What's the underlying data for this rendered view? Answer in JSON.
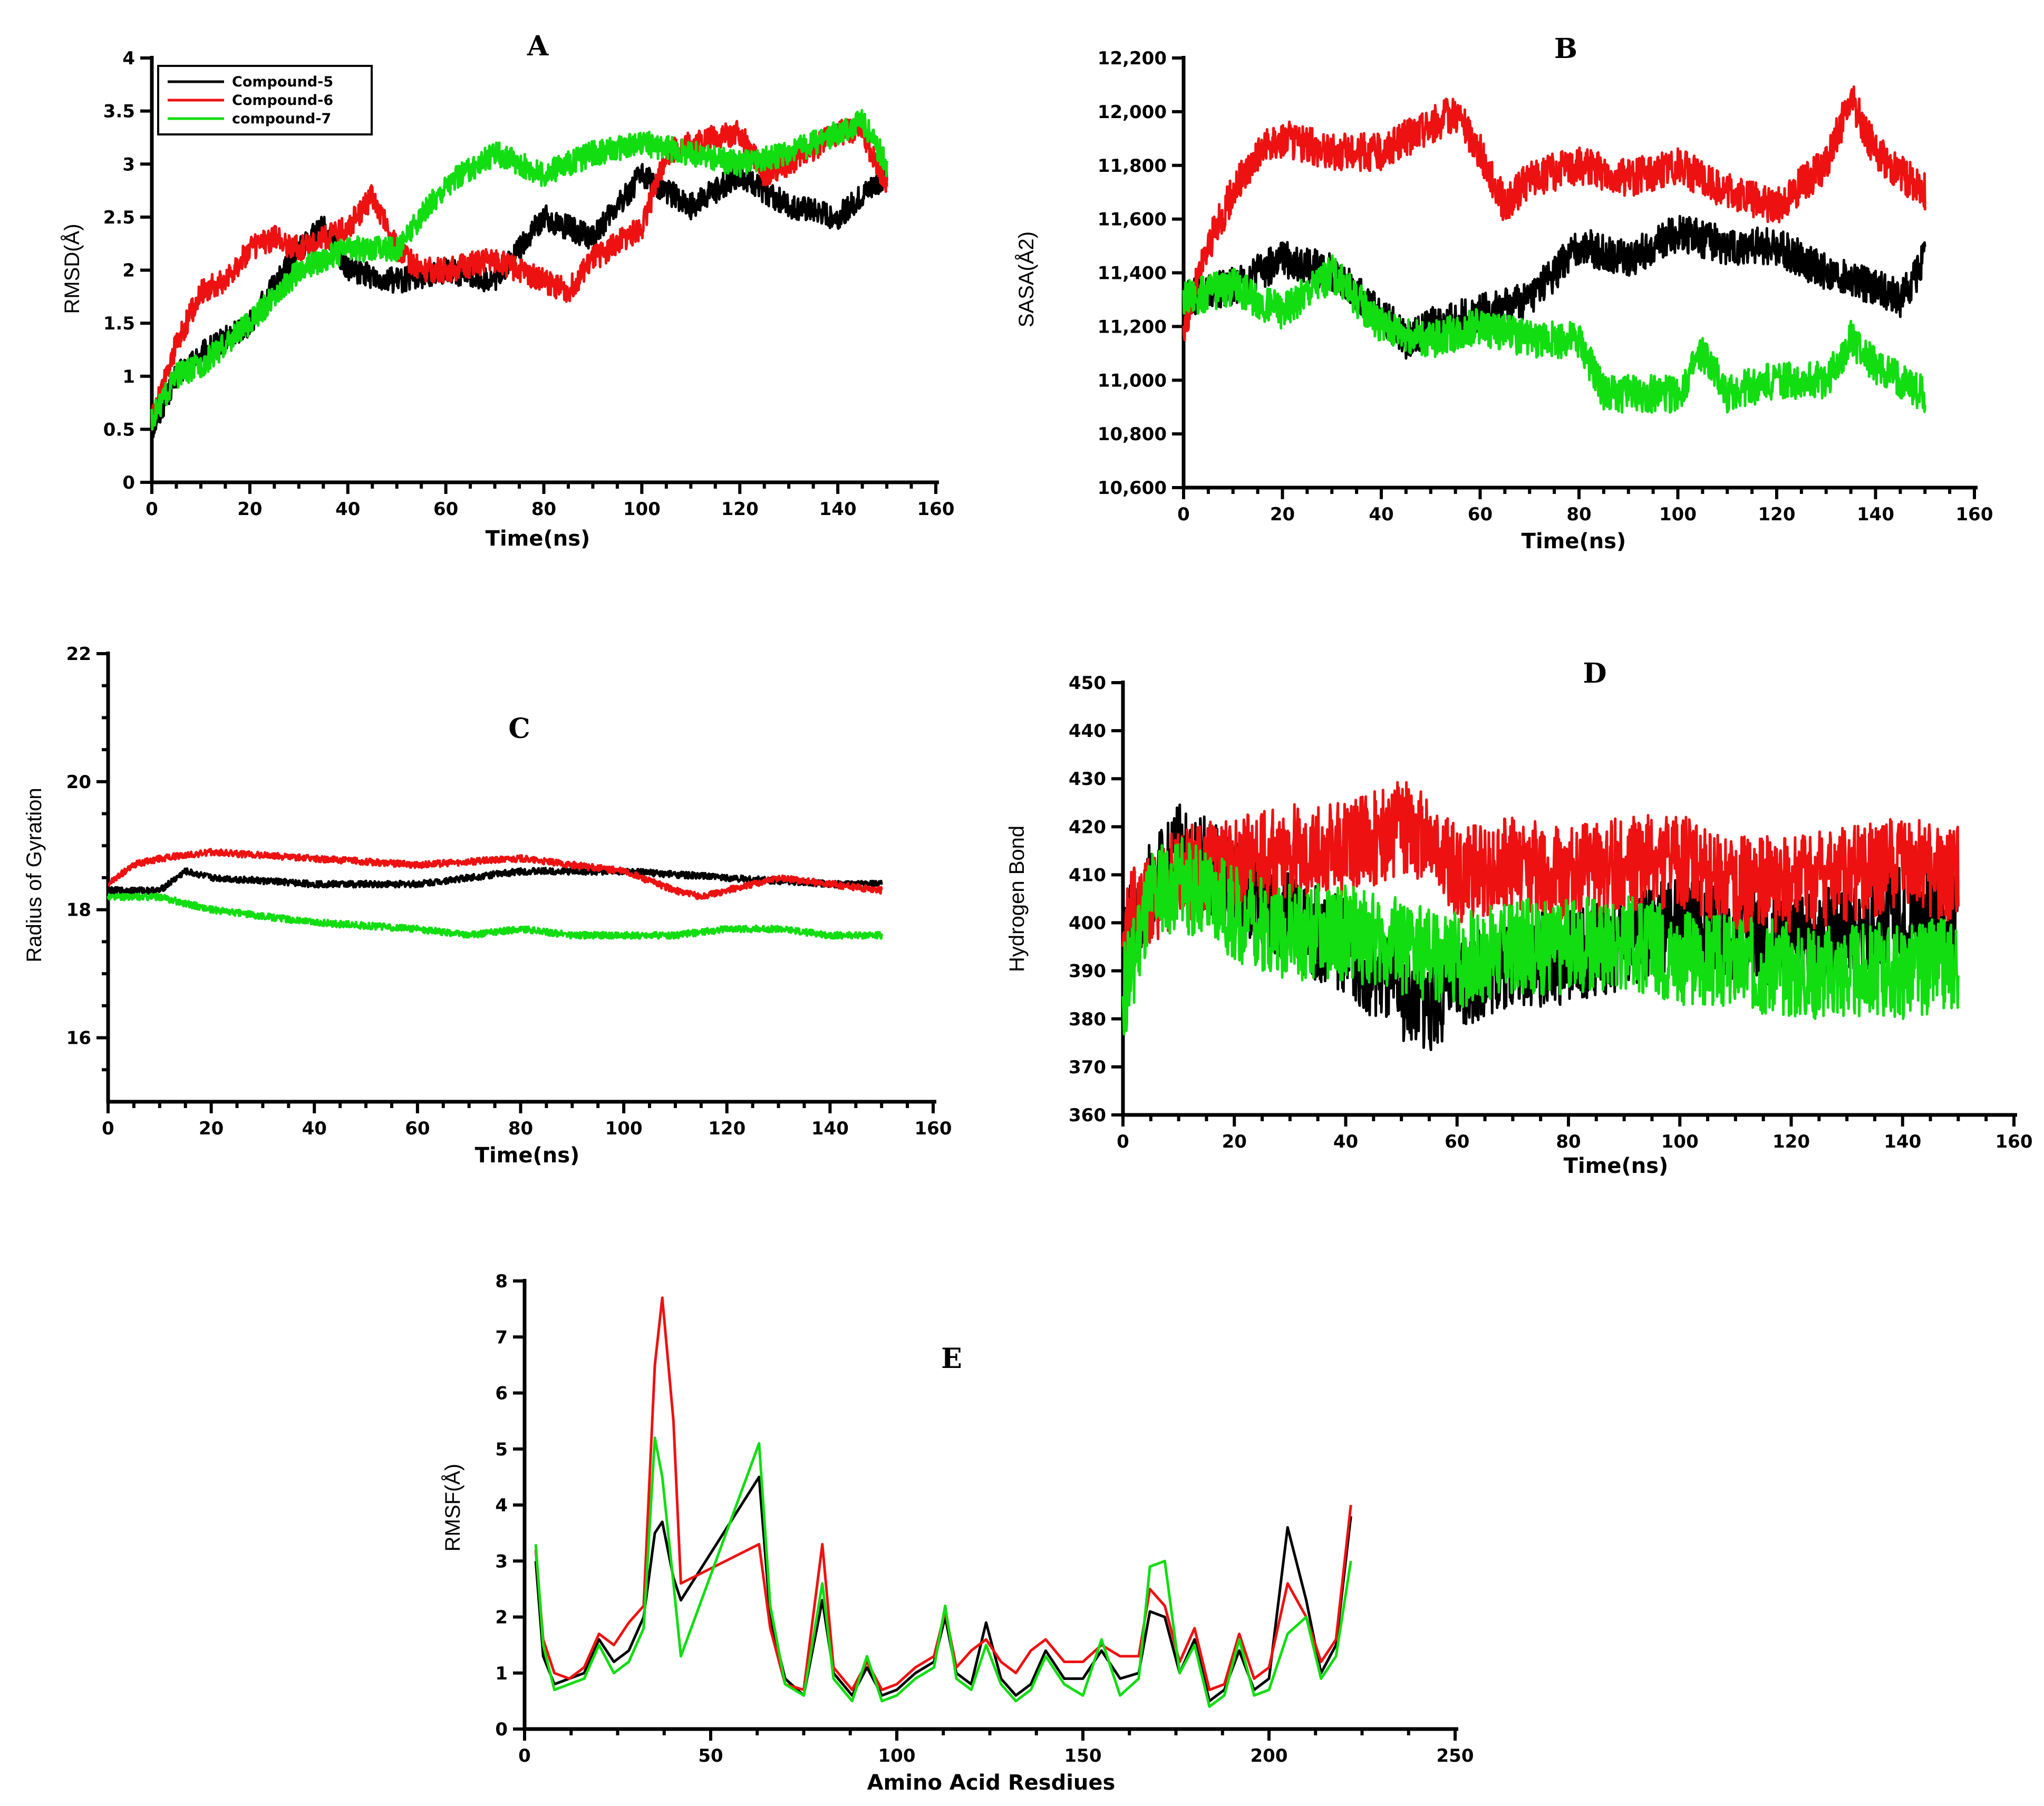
{
  "legend": [
    {
      "name": "Compound-5",
      "color": "#000000"
    },
    {
      "name": "Compound-6",
      "color": "#ee1111"
    },
    {
      "name": "compound-7",
      "color": "#11dd11"
    }
  ],
  "chart_data": [
    {
      "id": "A",
      "type": "line",
      "panel_label": "A",
      "xlabel": "Time(ns)",
      "ylabel": "RMSD(Å)",
      "xlim": [
        0,
        160
      ],
      "ylim": [
        0,
        4
      ],
      "xticks": [
        "0",
        "20",
        "40",
        "60",
        "80",
        "100",
        "120",
        "140",
        "160"
      ],
      "yticks": [
        "0",
        "0.5",
        "1",
        "1.5",
        "2",
        "2.5",
        "3",
        "3.5",
        "4"
      ],
      "noise": 0.12,
      "series": [
        {
          "name": "Compound-5",
          "color": "#000000",
          "x": [
            0,
            5,
            10,
            20,
            30,
            35,
            40,
            50,
            60,
            70,
            80,
            90,
            100,
            110,
            120,
            130,
            140,
            150
          ],
          "values": [
            0.5,
            1.0,
            1.2,
            1.5,
            2.2,
            2.4,
            2.0,
            1.9,
            2.0,
            1.9,
            2.5,
            2.3,
            2.9,
            2.6,
            2.9,
            2.6,
            2.5,
            2.9
          ]
        },
        {
          "name": "Compound-6",
          "color": "#ee1111",
          "x": [
            0,
            5,
            10,
            15,
            20,
            25,
            30,
            35,
            40,
            45,
            50,
            55,
            60,
            70,
            80,
            85,
            90,
            100,
            105,
            110,
            120,
            125,
            130,
            140,
            145,
            150
          ],
          "values": [
            0.6,
            1.3,
            1.8,
            1.9,
            2.2,
            2.3,
            2.2,
            2.3,
            2.4,
            2.7,
            2.2,
            2.0,
            2.0,
            2.1,
            1.9,
            1.8,
            2.1,
            2.4,
            3.1,
            3.2,
            3.3,
            2.9,
            3.0,
            3.3,
            3.3,
            2.8
          ]
        },
        {
          "name": "compound-7",
          "color": "#11dd11",
          "x": [
            0,
            5,
            10,
            20,
            30,
            40,
            50,
            60,
            70,
            80,
            90,
            100,
            110,
            120,
            130,
            140,
            145,
            150
          ],
          "values": [
            0.6,
            1.0,
            1.1,
            1.5,
            2.0,
            2.2,
            2.2,
            2.8,
            3.1,
            2.9,
            3.1,
            3.2,
            3.1,
            3.0,
            3.1,
            3.3,
            3.4,
            3.0
          ]
        }
      ]
    },
    {
      "id": "B",
      "type": "line",
      "panel_label": "B",
      "xlabel": "Time(ns)",
      "ylabel": "SASA(Å2)",
      "xlim": [
        0,
        160
      ],
      "ylim": [
        10600,
        12200
      ],
      "xticks": [
        "0",
        "20",
        "40",
        "60",
        "80",
        "100",
        "120",
        "140",
        "160"
      ],
      "yticks": [
        "10,600",
        "10,800",
        "11,000",
        "11,200",
        "11,400",
        "11,600",
        "11,800",
        "12,000",
        "12,200"
      ],
      "noise": 70,
      "series": [
        {
          "name": "Compound-5",
          "color": "#000000",
          "x": [
            0,
            10,
            20,
            30,
            40,
            45,
            50,
            60,
            70,
            80,
            90,
            100,
            110,
            120,
            130,
            140,
            145,
            150
          ],
          "values": [
            11300,
            11350,
            11450,
            11400,
            11250,
            11150,
            11200,
            11250,
            11300,
            11500,
            11450,
            11550,
            11500,
            11500,
            11400,
            11350,
            11300,
            11450
          ]
        },
        {
          "name": "Compound-6",
          "color": "#ee1111",
          "x": [
            0,
            5,
            10,
            15,
            20,
            30,
            40,
            50,
            55,
            60,
            65,
            70,
            80,
            90,
            100,
            110,
            120,
            130,
            135,
            140,
            150
          ],
          "values": [
            11200,
            11500,
            11700,
            11850,
            11900,
            11850,
            11850,
            11950,
            12000,
            11850,
            11650,
            11750,
            11800,
            11750,
            11800,
            11700,
            11650,
            11800,
            12050,
            11850,
            11700
          ]
        },
        {
          "name": "compound-7",
          "color": "#11dd11",
          "x": [
            0,
            10,
            20,
            30,
            40,
            50,
            60,
            70,
            80,
            85,
            90,
            100,
            105,
            110,
            120,
            130,
            135,
            140,
            150
          ],
          "values": [
            11300,
            11350,
            11250,
            11400,
            11200,
            11150,
            11200,
            11150,
            11150,
            10950,
            10950,
            10950,
            11100,
            10950,
            11000,
            11000,
            11150,
            11050,
            10950
          ]
        }
      ]
    },
    {
      "id": "C",
      "type": "line",
      "panel_label": "C",
      "xlabel": "Time(ns)",
      "ylabel": "Radius of Gyration",
      "xlim": [
        0,
        160
      ],
      "ylim": [
        15,
        22
      ],
      "xticks": [
        "0",
        "20",
        "40",
        "60",
        "80",
        "100",
        "120",
        "140",
        "160"
      ],
      "yticks": [
        "16",
        "18",
        "20",
        "22"
      ],
      "noise": 0.05,
      "series": [
        {
          "name": "Compound-5",
          "color": "#000000",
          "x": [
            0,
            10,
            15,
            20,
            40,
            60,
            80,
            90,
            100,
            120,
            140,
            150
          ],
          "values": [
            18.3,
            18.3,
            18.6,
            18.5,
            18.4,
            18.4,
            18.6,
            18.6,
            18.6,
            18.5,
            18.4,
            18.4
          ]
        },
        {
          "name": "Compound-6",
          "color": "#ee1111",
          "x": [
            0,
            5,
            10,
            20,
            40,
            60,
            80,
            90,
            100,
            110,
            115,
            120,
            130,
            140,
            150
          ],
          "values": [
            18.4,
            18.7,
            18.8,
            18.9,
            18.8,
            18.7,
            18.8,
            18.7,
            18.6,
            18.3,
            18.2,
            18.3,
            18.5,
            18.4,
            18.3
          ]
        },
        {
          "name": "compound-7",
          "color": "#11dd11",
          "x": [
            0,
            10,
            20,
            30,
            40,
            60,
            70,
            80,
            90,
            100,
            110,
            120,
            130,
            140,
            150
          ],
          "values": [
            18.2,
            18.2,
            18.0,
            17.9,
            17.8,
            17.7,
            17.6,
            17.7,
            17.6,
            17.6,
            17.6,
            17.7,
            17.7,
            17.6,
            17.6
          ]
        }
      ]
    },
    {
      "id": "D",
      "type": "line",
      "panel_label": "D",
      "xlabel": "Time(ns)",
      "ylabel": "Hydrogen Bond",
      "xlim": [
        0,
        160
      ],
      "ylim": [
        360,
        450
      ],
      "xticks": [
        "0",
        "20",
        "40",
        "60",
        "80",
        "100",
        "120",
        "140",
        "160"
      ],
      "yticks": [
        "360",
        "370",
        "380",
        "390",
        "400",
        "410",
        "420",
        "430",
        "440",
        "450"
      ],
      "noise": 10,
      "series": [
        {
          "name": "Compound-5",
          "color": "#000000",
          "x": [
            0,
            5,
            10,
            15,
            20,
            30,
            40,
            50,
            55,
            60,
            70,
            80,
            90,
            100,
            110,
            120,
            130,
            140,
            150
          ],
          "values": [
            395,
            408,
            415,
            412,
            408,
            400,
            395,
            385,
            383,
            388,
            392,
            393,
            396,
            400,
            398,
            396,
            398,
            402,
            400
          ]
        },
        {
          "name": "Compound-6",
          "color": "#ee1111",
          "x": [
            0,
            10,
            20,
            30,
            40,
            50,
            55,
            60,
            70,
            80,
            90,
            100,
            110,
            120,
            130,
            140,
            150
          ],
          "values": [
            400,
            410,
            412,
            415,
            415,
            420,
            418,
            410,
            412,
            410,
            412,
            413,
            408,
            408,
            410,
            412,
            410
          ]
        },
        {
          "name": "compound-7",
          "color": "#11dd11",
          "x": [
            0,
            5,
            10,
            20,
            30,
            40,
            50,
            60,
            70,
            80,
            90,
            100,
            110,
            120,
            130,
            140,
            150
          ],
          "values": [
            385,
            405,
            408,
            402,
            398,
            398,
            395,
            392,
            395,
            395,
            396,
            393,
            392,
            390,
            390,
            390,
            392
          ]
        }
      ]
    },
    {
      "id": "E",
      "type": "line",
      "panel_label": "E",
      "xlabel": "Amino Acid Resdiues",
      "ylabel": "RMSF(Å)",
      "xlim": [
        0,
        250
      ],
      "ylim": [
        0,
        8
      ],
      "xticks": [
        "0",
        "50",
        "100",
        "150",
        "200",
        "250"
      ],
      "yticks": [
        "0",
        "1",
        "2",
        "3",
        "4",
        "5",
        "6",
        "7",
        "8"
      ],
      "noise": 0,
      "series": [
        {
          "name": "Compound-5",
          "color": "#000000",
          "x": [
            3,
            5,
            8,
            12,
            16,
            20,
            24,
            28,
            32,
            35,
            37,
            40,
            42,
            63,
            66,
            70,
            75,
            80,
            83,
            88,
            92,
            96,
            100,
            105,
            110,
            113,
            116,
            120,
            124,
            128,
            132,
            136,
            140,
            145,
            150,
            155,
            160,
            165,
            168,
            172,
            176,
            180,
            184,
            188,
            192,
            196,
            200,
            205,
            210,
            214,
            218,
            222
          ],
          "values": [
            3.0,
            1.3,
            0.8,
            0.9,
            1.0,
            1.6,
            1.2,
            1.4,
            2.0,
            3.5,
            3.7,
            2.7,
            2.3,
            4.5,
            2.0,
            0.9,
            0.6,
            2.3,
            1.0,
            0.6,
            1.1,
            0.6,
            0.7,
            1.0,
            1.2,
            2.0,
            1.0,
            0.8,
            1.9,
            0.9,
            0.6,
            0.8,
            1.4,
            0.9,
            0.9,
            1.4,
            0.9,
            1.0,
            2.1,
            2.0,
            1.0,
            1.6,
            0.5,
            0.7,
            1.4,
            0.7,
            0.9,
            3.6,
            2.3,
            1.0,
            1.5,
            3.8
          ]
        },
        {
          "name": "Compound-6",
          "color": "#ee1111",
          "x": [
            3,
            5,
            8,
            12,
            16,
            20,
            24,
            28,
            32,
            35,
            37,
            40,
            42,
            63,
            66,
            70,
            75,
            80,
            83,
            88,
            92,
            96,
            100,
            105,
            110,
            113,
            116,
            120,
            124,
            128,
            132,
            136,
            140,
            145,
            150,
            155,
            160,
            165,
            168,
            172,
            176,
            180,
            184,
            188,
            192,
            196,
            200,
            205,
            210,
            214,
            218,
            222
          ],
          "values": [
            3.2,
            1.6,
            1.0,
            0.9,
            1.1,
            1.7,
            1.5,
            1.9,
            2.2,
            6.5,
            7.7,
            5.5,
            2.6,
            3.3,
            1.8,
            0.8,
            0.7,
            3.3,
            1.1,
            0.7,
            1.2,
            0.7,
            0.8,
            1.1,
            1.3,
            2.1,
            1.1,
            1.4,
            1.6,
            1.2,
            1.0,
            1.4,
            1.6,
            1.2,
            1.2,
            1.5,
            1.3,
            1.3,
            2.5,
            2.2,
            1.2,
            1.8,
            0.7,
            0.8,
            1.7,
            0.9,
            1.1,
            2.6,
            2.0,
            1.2,
            1.6,
            4.0
          ]
        },
        {
          "name": "compound-7",
          "color": "#11dd11",
          "x": [
            3,
            5,
            8,
            12,
            16,
            20,
            24,
            28,
            32,
            35,
            37,
            40,
            42,
            63,
            66,
            70,
            75,
            80,
            83,
            88,
            92,
            96,
            100,
            105,
            110,
            113,
            116,
            120,
            124,
            128,
            132,
            136,
            140,
            145,
            150,
            155,
            160,
            165,
            168,
            172,
            176,
            180,
            184,
            188,
            192,
            196,
            200,
            205,
            210,
            214,
            218,
            222
          ],
          "values": [
            3.3,
            1.5,
            0.7,
            0.8,
            0.9,
            1.5,
            1.0,
            1.2,
            1.8,
            5.2,
            4.5,
            2.6,
            1.3,
            5.1,
            2.2,
            0.8,
            0.6,
            2.6,
            0.9,
            0.5,
            1.3,
            0.5,
            0.6,
            0.9,
            1.1,
            2.2,
            0.9,
            0.7,
            1.5,
            0.8,
            0.5,
            0.7,
            1.3,
            0.8,
            0.6,
            1.6,
            0.6,
            0.9,
            2.9,
            3.0,
            1.0,
            1.5,
            0.4,
            0.6,
            1.6,
            0.6,
            0.7,
            1.7,
            2.0,
            0.9,
            1.3,
            3.0
          ]
        }
      ]
    }
  ]
}
